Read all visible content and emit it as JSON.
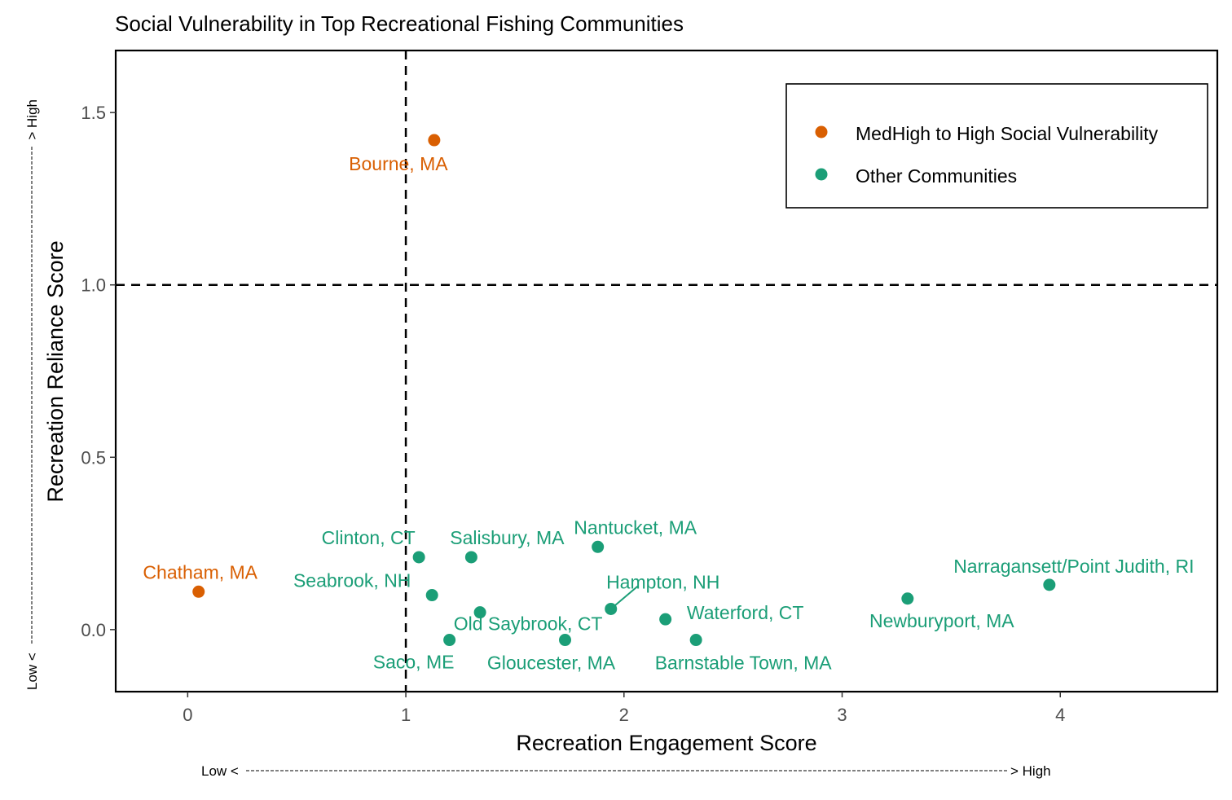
{
  "chart_data": {
    "type": "scatter",
    "title": "Social Vulnerability in Top Recreational Fishing Communities",
    "xlabel": "Recreation Engagement Score",
    "ylabel": "Recreation Reliance Score",
    "x_arrow": {
      "low": "Low <",
      "high": "> High"
    },
    "y_arrow": {
      "low": "Low <",
      "high": "> High"
    },
    "xlim": [
      -0.33,
      4.72
    ],
    "ylim": [
      -0.18,
      1.68
    ],
    "x_ticks": [
      0,
      1,
      2,
      3,
      4
    ],
    "y_ticks": [
      0.0,
      0.5,
      1.0,
      1.5
    ],
    "y_tick_labels": [
      "0.0",
      "0.5",
      "1.0",
      "1.5"
    ],
    "reference_lines": {
      "x": 1,
      "y": 1
    },
    "grid": false,
    "legend_position": "top-right",
    "series": [
      {
        "name": "MedHigh to High Social Vulnerability",
        "color": "#d95f02",
        "points": [
          {
            "label": "Bourne, MA",
            "x": 1.13,
            "y": 1.42
          },
          {
            "label": "Chatham, MA",
            "x": 0.05,
            "y": 0.11
          }
        ]
      },
      {
        "name": "Other Communities",
        "color": "#1b9e77",
        "points": [
          {
            "label": "Clinton, CT",
            "x": 1.06,
            "y": 0.21
          },
          {
            "label": "Salisbury, MA",
            "x": 1.3,
            "y": 0.21
          },
          {
            "label": "Nantucket, MA",
            "x": 1.88,
            "y": 0.24
          },
          {
            "label": "Seabrook, NH",
            "x": 1.12,
            "y": 0.1
          },
          {
            "label": "Hampton, NH",
            "x": 1.94,
            "y": 0.06
          },
          {
            "label": "Old Saybrook, CT",
            "x": 1.34,
            "y": 0.05
          },
          {
            "label": "Waterford, CT",
            "x": 2.19,
            "y": 0.03
          },
          {
            "label": "Saco, ME",
            "x": 1.2,
            "y": -0.03
          },
          {
            "label": "Gloucester, MA",
            "x": 1.73,
            "y": -0.03
          },
          {
            "label": "Barnstable Town, MA",
            "x": 2.33,
            "y": -0.03
          },
          {
            "label": "Newburyport, MA",
            "x": 3.3,
            "y": 0.09
          },
          {
            "label": "Narragansett/Point Judith, RI",
            "x": 3.95,
            "y": 0.13
          }
        ]
      }
    ]
  }
}
